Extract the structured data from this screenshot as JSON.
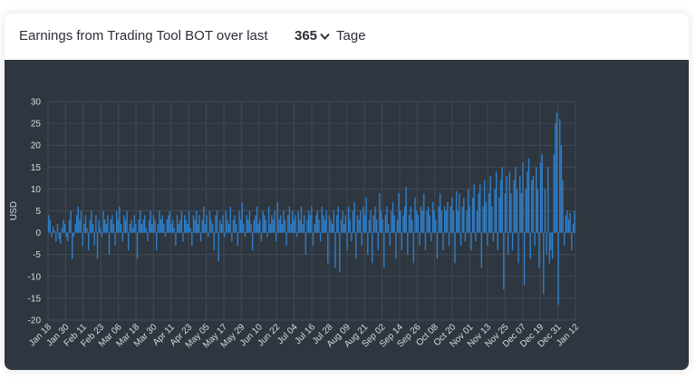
{
  "header": {
    "title": "Earnings from Trading Tool BOT over last",
    "period_value": "365",
    "period_unit": "Tage",
    "dropdown_icon": "chevron-down-icon"
  },
  "colors": {
    "card_bg": "#ffffff",
    "plot_bg": "#2e3640",
    "bar": "#2f7fc9",
    "grid": "#404a56",
    "text": "#d6dbe0"
  },
  "chart_data": {
    "type": "bar",
    "title": "",
    "xlabel": "",
    "ylabel": "USD",
    "ylim": [
      -20,
      30
    ],
    "yticks": [
      30,
      25,
      20,
      15,
      10,
      5,
      0,
      -5,
      -10,
      -15,
      -20
    ],
    "x_tick_labels": [
      "Jan 18",
      "Jan 30",
      "Feb 11",
      "Feb 23",
      "Mar 06",
      "Mar 18",
      "Mar 30",
      "Apr 11",
      "Apr 23",
      "May 05",
      "May 17",
      "May 29",
      "Jun 10",
      "Jun 22",
      "Jul 04",
      "Jul 16",
      "Jul 28",
      "Aug 09",
      "Aug 21",
      "Sep 02",
      "Sep 14",
      "Sep 26",
      "Oct 08",
      "Oct 20",
      "Nov 01",
      "Nov 13",
      "Nov 25",
      "Dec 07",
      "Dec 19",
      "Dec 31",
      "Jan 12"
    ],
    "grid": true,
    "legend": "none",
    "series": [
      {
        "values": [
          4.0,
          3.0,
          -1.0,
          1.5,
          0.5,
          -2.0,
          2.0,
          -1.5,
          -2.5,
          1.0,
          3.0,
          2.0,
          -1.0,
          -2.0,
          3.0,
          5.0,
          -6.0,
          -1.0,
          2.0,
          4.0,
          6.0,
          3.0,
          5.0,
          -3.0,
          2.0,
          4.0,
          1.0,
          -4.0,
          3.0,
          5.0,
          2.0,
          -3.0,
          4.0,
          -6.0,
          3.0,
          1.0,
          -1.0,
          5.0,
          3.0,
          2.0,
          4.0,
          -5.0,
          3.0,
          4.0,
          2.0,
          -3.0,
          5.0,
          3.0,
          6.0,
          2.0,
          -2.0,
          4.0,
          3.0,
          5.0,
          -4.0,
          2.0,
          3.0,
          1.0,
          4.0,
          2.0,
          -6.0,
          3.0,
          5.0,
          2.0,
          3.0,
          4.0,
          1.0,
          -2.0,
          3.0,
          5.0,
          2.0,
          4.0,
          3.0,
          -4.0,
          2.0,
          5.0,
          3.0,
          4.0,
          2.0,
          -1.0,
          3.0,
          4.0,
          5.0,
          2.0,
          3.0,
          1.0,
          -3.0,
          4.0,
          2.0,
          3.0,
          5.0,
          -2.0,
          4.0,
          3.0,
          2.0,
          5.0,
          1.0,
          -3.0,
          4.0,
          3.0,
          5.0,
          2.0,
          4.0,
          -2.0,
          3.0,
          6.0,
          2.0,
          4.0,
          -1.0,
          5.0,
          3.0,
          2.0,
          -4.0,
          4.0,
          5.0,
          -6.5,
          3.0,
          2.0,
          4.0,
          -1.0,
          5.0,
          3.0,
          2.0,
          6.0,
          -2.0,
          3.0,
          4.0,
          2.0,
          -3.0,
          5.0,
          3.0,
          7.0,
          2.0,
          -1.0,
          4.0,
          3.0,
          5.0,
          2.0,
          -4.0,
          3.0,
          4.0,
          6.0,
          2.0,
          3.0,
          -2.0,
          5.0,
          4.0,
          3.0,
          -1.0,
          6.0,
          2.0,
          4.0,
          3.0,
          5.0,
          -2.0,
          7.0,
          3.0,
          4.0,
          2.0,
          5.0,
          3.0,
          -3.0,
          4.0,
          6.0,
          2.0,
          5.0,
          3.0,
          4.0,
          -1.0,
          5.0,
          3.0,
          6.0,
          2.0,
          4.0,
          -5.0,
          3.0,
          5.0,
          4.0,
          6.0,
          -3.0,
          2.0,
          4.0,
          5.0,
          3.0,
          -2.0,
          6.0,
          4.0,
          3.0,
          5.0,
          -7.0,
          4.0,
          3.0,
          2.0,
          5.0,
          -8.0,
          4.0,
          6.0,
          -9.0,
          3.0,
          5.0,
          2.0,
          4.0,
          -4.0,
          6.0,
          3.0,
          -2.0,
          5.0,
          7.0,
          -6.0,
          4.0,
          3.0,
          5.0,
          -3.0,
          6.0,
          4.0,
          8.0,
          -5.0,
          3.0,
          5.0,
          -7.0,
          4.0,
          6.0,
          3.0,
          -4.0,
          9.0,
          5.0,
          3.0,
          -8.0,
          4.0,
          6.0,
          2.0,
          -3.0,
          5.0,
          7.0,
          4.0,
          -6.0,
          3.0,
          9.0,
          5.0,
          -4.0,
          4.0,
          6.0,
          10.5,
          -5.0,
          4.0,
          6.0,
          3.0,
          -7.0,
          8.0,
          5.0,
          4.0,
          -3.0,
          6.0,
          5.0,
          9.0,
          -4.0,
          5.0,
          6.0,
          4.0,
          -2.0,
          7.0,
          5.0,
          3.0,
          -6.0,
          6.0,
          9.0,
          5.0,
          -4.0,
          6.0,
          5.0,
          7.0,
          -3.0,
          6.0,
          8.0,
          5.0,
          -7.0,
          9.5,
          5.0,
          9.0,
          -3.0,
          6.0,
          8.0,
          -2.0,
          5.0,
          10.0,
          6.0,
          -4.0,
          8.0,
          11.0,
          -2.0,
          5.0,
          9.0,
          11.0,
          -8.0,
          6.0,
          12.0,
          7.0,
          -3.0,
          9.0,
          13.0,
          6.0,
          -2.0,
          10.0,
          14.0,
          -4.0,
          8.0,
          12.0,
          15.0,
          -13.0,
          9.0,
          13.0,
          -5.0,
          14.0,
          9.0,
          -4.0,
          12.0,
          15.0,
          10.0,
          -7.0,
          13.0,
          9.0,
          16.0,
          -12.0,
          10.0,
          14.0,
          17.0,
          -6.0,
          12.0,
          13.0,
          -3.0,
          15.0,
          10.0,
          -8.0,
          16.0,
          18.0,
          -14.0,
          10.0,
          -5.0,
          15.0,
          -7.0,
          -4.0,
          -6.0,
          18.0,
          25.0,
          27.5,
          -16.5,
          26.0,
          20.0,
          12.0,
          -3.0,
          4.0,
          5.0,
          3.0,
          4.5,
          -4.0,
          2.0,
          5.0
        ]
      }
    ]
  }
}
